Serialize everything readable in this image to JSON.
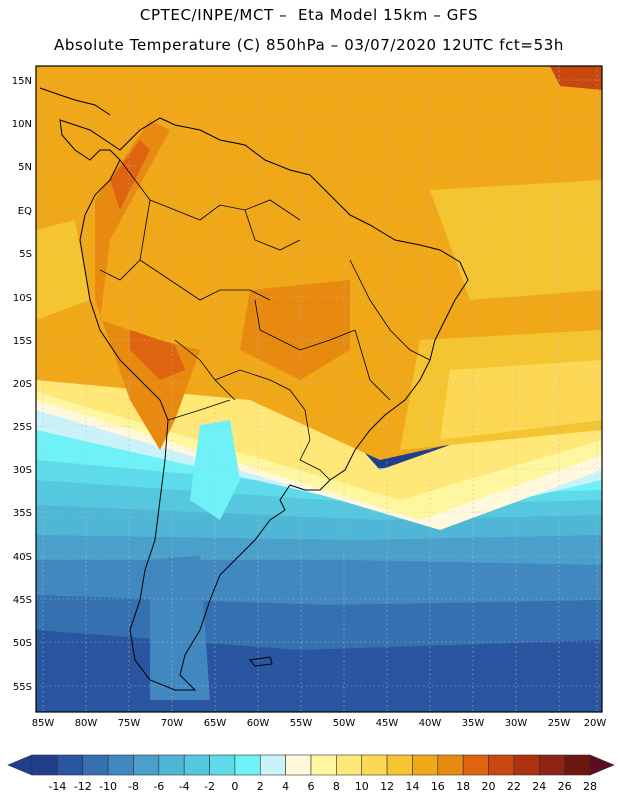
{
  "header": {
    "line1": "CPTEC/INPE/MCT –  Eta Model 15km – GFS",
    "line2": "Absolute Temperature (C) 850hPa – 03/07/2020 12UTC fct=53h"
  },
  "map": {
    "lat_ticks": [
      "15N",
      "10N",
      "5N",
      "EQ",
      "5S",
      "10S",
      "15S",
      "20S",
      "25S",
      "30S",
      "35S",
      "40S",
      "45S",
      "50S",
      "55S"
    ],
    "lon_ticks": [
      "85W",
      "80W",
      "75W",
      "70W",
      "65W",
      "60W",
      "55W",
      "50W",
      "45W",
      "40W",
      "35W",
      "30W",
      "25W",
      "20W"
    ],
    "grid": true
  },
  "colorbar": {
    "labels": [
      "-14",
      "-12",
      "-10",
      "-8",
      "-6",
      "-4",
      "-2",
      "0",
      "2",
      "4",
      "6",
      "8",
      "10",
      "12",
      "14",
      "16",
      "18",
      "20",
      "22",
      "24",
      "26",
      "28"
    ],
    "colors": [
      "#203e8c",
      "#2a55a0",
      "#3570b0",
      "#4288c0",
      "#4aa0ca",
      "#4fb6d6",
      "#55c8e0",
      "#5edbea",
      "#6ef2f8",
      "#c9f2fa",
      "#fff8dc",
      "#fff7a0",
      "#ffe878",
      "#fcd855",
      "#f5c431",
      "#f0a818",
      "#e88a10",
      "#de6410",
      "#c84810",
      "#ad3210",
      "#8e2414",
      "#6c1810"
    ]
  }
}
